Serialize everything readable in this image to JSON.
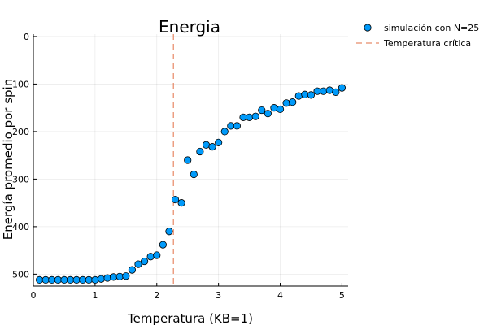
{
  "chart_data": {
    "type": "scatter",
    "title": "Energia",
    "xlabel": "Temperatura (KB=1)",
    "ylabel": "Energía promedio por spin",
    "xlim": [
      0,
      5.1
    ],
    "ylim": [
      -525,
      5
    ],
    "xticks": [
      0,
      1,
      2,
      3,
      4,
      5
    ],
    "yticks": [
      0,
      -100,
      -200,
      -300,
      -400,
      -500
    ],
    "xtick_labels": [
      "0",
      "1",
      "2",
      "3",
      "4",
      "5"
    ],
    "ytick_labels": [
      "0",
      "100",
      "200",
      "300",
      "400",
      "500"
    ],
    "grid": true,
    "legend_position": "top-right",
    "series": [
      {
        "name": "simulación con N=25",
        "marker": "circle",
        "color": "#009AFA",
        "x": [
          0.1,
          0.2,
          0.3,
          0.4,
          0.5,
          0.6,
          0.7,
          0.8,
          0.9,
          1.0,
          1.1,
          1.2,
          1.3,
          1.4,
          1.5,
          1.6,
          1.7,
          1.8,
          1.9,
          2.0,
          2.1,
          2.2,
          2.3,
          2.4,
          2.5,
          2.6,
          2.7,
          2.8,
          2.9,
          3.0,
          3.1,
          3.2,
          3.3,
          3.4,
          3.5,
          3.6,
          3.7,
          3.8,
          3.9,
          4.0,
          4.1,
          4.2,
          4.3,
          4.4,
          4.5,
          4.6,
          4.7,
          4.8,
          4.9,
          5.0
        ],
        "y": [
          -512,
          -512,
          -512,
          -512,
          -512,
          -512,
          -512,
          -512,
          -512,
          -512,
          -510,
          -508,
          -506,
          -505,
          -504,
          -491,
          -479,
          -473,
          -463,
          -460,
          -438,
          -410,
          -343,
          -350,
          -260,
          -290,
          -242,
          -228,
          -232,
          -223,
          -200,
          -188,
          -188,
          -170,
          -170,
          -168,
          -155,
          -162,
          -150,
          -153,
          -140,
          -138,
          -125,
          -122,
          -123,
          -115,
          -115,
          -113,
          -117,
          -108
        ]
      },
      {
        "name": "Temperatura crítica",
        "type": "vline",
        "style": "dashed",
        "color": "#E26F46",
        "x": 2.269
      }
    ]
  }
}
